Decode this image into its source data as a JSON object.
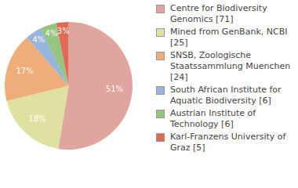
{
  "chart_data": {
    "type": "pie",
    "categories": [
      "Centre for Biodiversity Genomics [71]",
      "Mined from GenBank, NCBI [25]",
      "SNSB, Zoologische Staatssammlung Muenchen [24]",
      "South African Institute for Aquatic Biodiversity [6]",
      "Austrian Institute of Technology [6]",
      "Karl-Franzens University of Graz [5]"
    ],
    "values": [
      51,
      18,
      17,
      4,
      4,
      3
    ],
    "value_labels": [
      "51%",
      "18%",
      "17%",
      "4%",
      "4%",
      "3%"
    ],
    "colors": [
      "#e0a59e",
      "#dfe1a0",
      "#efae79",
      "#96b4dc",
      "#96c57f",
      "#df6b56"
    ],
    "data_labels": true,
    "legend": "right"
  }
}
